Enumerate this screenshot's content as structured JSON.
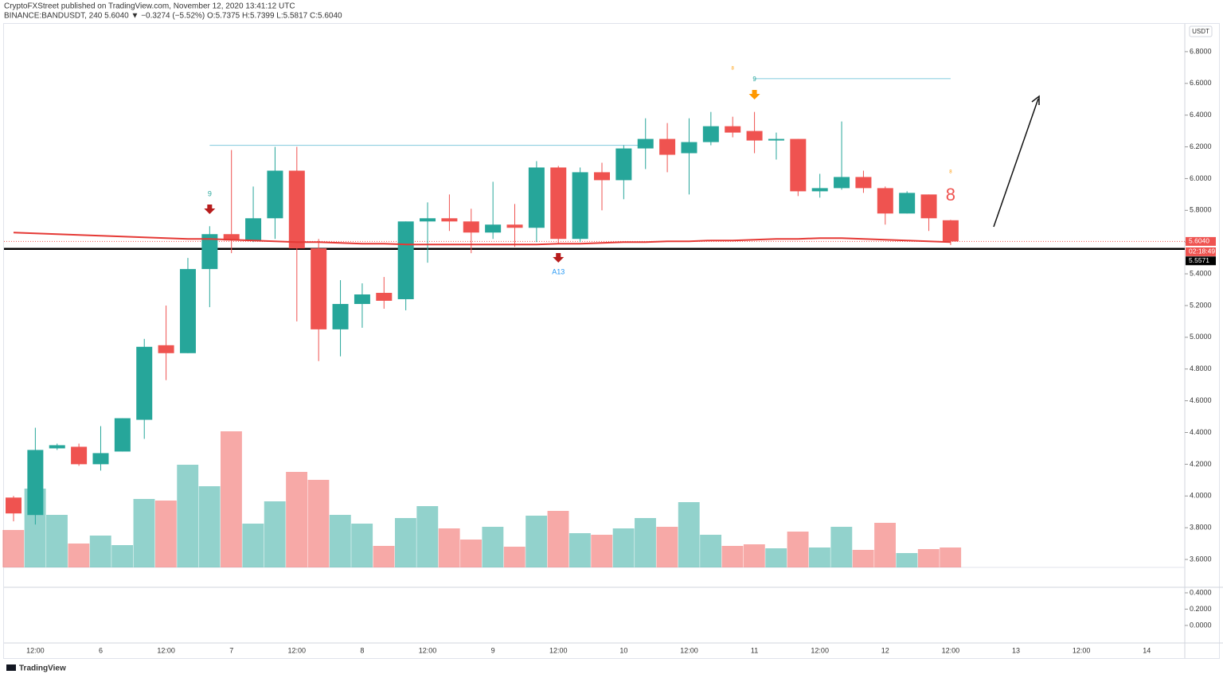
{
  "chart_data": {
    "type": "candlestick",
    "header": "CryptoFXStreet published on TradingView.com, November 12, 2020 13:41:12 UTC",
    "symbol_line": "BINANCE:BANDUSDT, 240  5.6040 ▼ −0.3274 (−5.52%) O:5.7375 H:5.7399 L:5.5817 C:5.6040",
    "currency": "USDT",
    "brand": "TradingView",
    "categories": [
      null,
      "12:00",
      null,
      null,
      "6",
      null,
      null,
      "12:00",
      null,
      null,
      "7",
      null,
      null,
      "12:00",
      null,
      null,
      "8",
      null,
      null,
      "12:00",
      null,
      null,
      "9",
      null,
      null,
      "12:00",
      null,
      null,
      "10",
      null,
      null,
      "12:00",
      null,
      null,
      "11",
      null,
      null,
      "12:00",
      null,
      null,
      "12",
      null,
      null,
      "12:00",
      null,
      null,
      "13",
      null,
      null,
      "12:00",
      null,
      null,
      "14"
    ],
    "open": [
      3.99,
      3.88,
      4.3,
      4.31,
      4.2,
      4.28,
      4.48,
      4.95,
      4.9,
      5.43,
      5.65,
      5.61,
      5.75,
      6.05,
      5.56,
      5.05,
      5.21,
      5.28,
      5.24,
      5.73,
      5.75,
      5.73,
      5.66,
      5.71,
      5.69,
      6.07,
      5.62,
      6.04,
      5.99,
      6.19,
      6.25,
      6.16,
      6.23,
      6.33,
      6.3,
      6.24,
      6.25,
      5.92,
      5.94,
      6.01,
      5.94,
      5.78,
      5.9,
      5.7375,
      null,
      null,
      null,
      null,
      null,
      null,
      null,
      null,
      null
    ],
    "high": [
      4.0,
      4.43,
      4.33,
      4.33,
      4.44,
      4.49,
      4.99,
      5.2,
      5.5,
      5.7,
      6.18,
      5.95,
      6.2,
      6.2,
      5.62,
      5.36,
      5.34,
      5.38,
      5.73,
      5.85,
      5.9,
      5.81,
      5.98,
      5.84,
      6.11,
      6.08,
      6.07,
      6.1,
      6.21,
      6.38,
      6.35,
      6.38,
      6.42,
      6.39,
      6.42,
      6.29,
      6.25,
      6.03,
      6.36,
      6.05,
      5.95,
      5.92,
      5.9,
      5.7399,
      null,
      null,
      null,
      null,
      null,
      null,
      null,
      null,
      null
    ],
    "low": [
      3.84,
      3.82,
      4.29,
      4.19,
      4.16,
      4.28,
      4.36,
      4.73,
      4.9,
      5.19,
      5.53,
      5.6,
      5.62,
      5.1,
      4.85,
      4.88,
      5.06,
      5.18,
      5.17,
      5.47,
      5.67,
      5.53,
      5.62,
      5.57,
      5.6,
      5.59,
      5.6,
      5.8,
      5.87,
      6.06,
      6.04,
      5.9,
      6.21,
      6.26,
      6.16,
      6.12,
      5.89,
      5.88,
      5.93,
      5.91,
      5.71,
      5.78,
      5.67,
      5.5817,
      null,
      null,
      null,
      null,
      null,
      null,
      null,
      null,
      null
    ],
    "close": [
      3.89,
      4.29,
      4.32,
      4.2,
      4.27,
      4.49,
      4.94,
      4.9,
      5.43,
      5.65,
      5.61,
      5.75,
      6.05,
      5.56,
      5.05,
      5.21,
      5.27,
      5.23,
      5.73,
      5.75,
      5.73,
      5.66,
      5.71,
      5.69,
      6.07,
      5.62,
      6.04,
      5.99,
      6.19,
      6.25,
      6.15,
      6.23,
      6.33,
      6.29,
      6.24,
      6.25,
      5.92,
      5.94,
      6.01,
      5.94,
      5.78,
      5.91,
      5.75,
      5.604,
      null,
      null,
      null,
      null,
      null,
      null,
      null,
      null,
      null
    ],
    "volume": [
      47,
      99,
      66,
      30,
      40,
      28,
      86,
      84,
      129,
      102,
      171,
      55,
      83,
      120,
      110,
      66,
      55,
      27,
      62,
      77,
      49,
      35,
      51,
      26,
      65,
      71,
      43,
      41,
      49,
      62,
      51,
      82,
      41,
      27,
      29,
      24,
      45,
      25,
      51,
      22,
      56,
      18,
      23,
      25,
      null,
      null,
      null,
      null,
      null,
      null,
      null,
      null,
      null
    ],
    "vlim": [
      0,
      200
    ],
    "ema": [
      5.66,
      5.655,
      5.65,
      5.645,
      5.64,
      5.635,
      5.63,
      5.625,
      5.62,
      5.62,
      5.615,
      5.61,
      5.605,
      5.6,
      5.6,
      5.595,
      5.59,
      5.59,
      5.585,
      5.585,
      5.585,
      5.585,
      5.585,
      5.585,
      5.585,
      5.59,
      5.59,
      5.595,
      5.6,
      5.6,
      5.605,
      5.605,
      5.61,
      5.61,
      5.615,
      5.62,
      5.62,
      5.625,
      5.625,
      5.62,
      5.615,
      5.61,
      5.605,
      5.6,
      null,
      null,
      null,
      null,
      null,
      null,
      null,
      null,
      null
    ],
    "up_color": "#26a69a",
    "down_color": "#ef5350",
    "ema_color": "#e53935",
    "ylim": [
      3.55,
      6.975
    ],
    "yticks": [
      {
        "value": 3.6,
        "label": "3.6000"
      },
      {
        "value": 3.8,
        "label": "3.8000"
      },
      {
        "value": 4.0,
        "label": "4.0000"
      },
      {
        "value": 4.2,
        "label": "4.2000"
      },
      {
        "value": 4.4,
        "label": "4.4000"
      },
      {
        "value": 4.6,
        "label": "4.6000"
      },
      {
        "value": 4.8,
        "label": "4.8000"
      },
      {
        "value": 5.0,
        "label": "5.0000"
      },
      {
        "value": 5.2,
        "label": "5.2000"
      },
      {
        "value": 5.4,
        "label": "5.4000"
      },
      {
        "value": 5.6,
        "label": "5.6000"
      },
      {
        "value": 5.8,
        "label": "5.8000"
      },
      {
        "value": 6.0,
        "label": "6.0000"
      },
      {
        "value": 6.2,
        "label": "6.2000"
      },
      {
        "value": 6.4,
        "label": "6.4000"
      },
      {
        "value": 6.6,
        "label": "6.6000"
      },
      {
        "value": 6.8,
        "label": "6.8000"
      }
    ],
    "last": {
      "value": 5.604,
      "label": "5.6040"
    },
    "countdown": "02:18:49",
    "support": {
      "value": 5.5571,
      "label": "5.5571"
    },
    "resistance": [
      6.21,
      6.63
    ],
    "annotations": [
      "9",
      "A13",
      "9",
      "8",
      "8",
      "8"
    ],
    "indicator": {
      "ylim": [
        -0.215,
        0.468
      ],
      "yticks": [
        {
          "value": 0.4,
          "label": "0.4000"
        },
        {
          "value": 0.2,
          "label": "0.2000"
        },
        {
          "value": 0,
          "label": "0.0000"
        }
      ]
    }
  }
}
